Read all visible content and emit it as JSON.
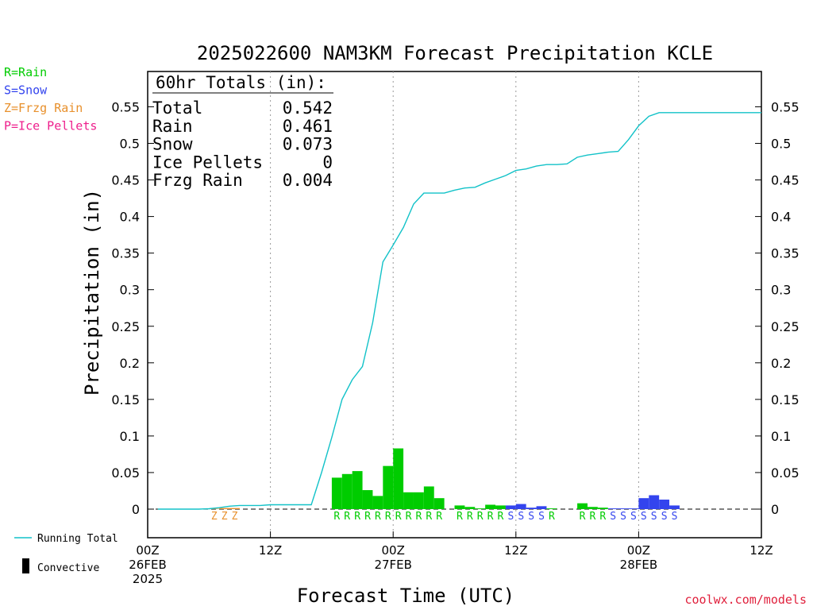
{
  "chart_data": {
    "type": "bar",
    "title": "2025022600 NAM3KM Forecast Precipitation KCLE",
    "xlabel": "Forecast Time (UTC)",
    "ylabel": "Precipitation (in)",
    "ylim": [
      -0.04,
      0.6
    ],
    "yticks": [
      0,
      0.05,
      0.1,
      0.15,
      0.2,
      0.25,
      0.3,
      0.35,
      0.4,
      0.45,
      0.5,
      0.55
    ],
    "ytick_labels": [
      "0",
      "0.05",
      "0.1",
      "0.15",
      "0.2",
      "0.25",
      "0.3",
      "0.35",
      "0.4",
      "0.45",
      "0.5",
      "0.55"
    ],
    "xlim_hours": [
      0,
      60
    ],
    "xticks": [
      {
        "hour": 0,
        "lines": [
          "00Z",
          "26FEB",
          "2025"
        ]
      },
      {
        "hour": 12,
        "lines": [
          "12Z"
        ]
      },
      {
        "hour": 24,
        "lines": [
          "00Z",
          "27FEB"
        ]
      },
      {
        "hour": 36,
        "lines": [
          "12Z"
        ]
      },
      {
        "hour": 48,
        "lines": [
          "00Z",
          "28FEB"
        ]
      },
      {
        "hour": 60,
        "lines": [
          "12Z"
        ]
      }
    ],
    "grid_hours": [
      12,
      24,
      36,
      48
    ],
    "legend_types": [
      {
        "code": "R",
        "label": "R=Rain",
        "color": "#00cc00"
      },
      {
        "code": "S",
        "label": "S=Snow",
        "color": "#3344ee"
      },
      {
        "code": "Z",
        "label": "Z=Frzg Rain",
        "color": "#e8902c"
      },
      {
        "code": "P",
        "label": "P=Ice Pellets",
        "color": "#ee1f8c"
      }
    ],
    "legend_lines": {
      "running_total": "Running Total",
      "convective": "Convective"
    },
    "totals": {
      "header": "60hr Totals (in):",
      "rows": [
        {
          "label": "Total",
          "value": "0.542"
        },
        {
          "label": "Rain",
          "value": "0.461"
        },
        {
          "label": "Snow",
          "value": "0.073"
        },
        {
          "label": "Ice Pellets",
          "value": "0"
        },
        {
          "label": "Frzg Rain",
          "value": "0.004"
        }
      ]
    },
    "running_total": {
      "hours": [
        1,
        4,
        5,
        6,
        7,
        8,
        9,
        10,
        11,
        12,
        13,
        14,
        15,
        16,
        17,
        18,
        19,
        20,
        21,
        22,
        23,
        24,
        25,
        26,
        27,
        28,
        29,
        30,
        31,
        32,
        33,
        34,
        35,
        36,
        37,
        38,
        39,
        40,
        41,
        42,
        43,
        44,
        45,
        46,
        47,
        48,
        49,
        50,
        51,
        52,
        53,
        60
      ],
      "values": [
        0.0,
        0.0,
        0.0,
        0.0005,
        0.002,
        0.004,
        0.005,
        0.005,
        0.005,
        0.006,
        0.006,
        0.006,
        0.006,
        0.006,
        0.05,
        0.098,
        0.15,
        0.177,
        0.195,
        0.255,
        0.338,
        0.361,
        0.385,
        0.417,
        0.432,
        0.432,
        0.432,
        0.436,
        0.439,
        0.44,
        0.446,
        0.451,
        0.456,
        0.463,
        0.465,
        0.469,
        0.471,
        0.471,
        0.472,
        0.481,
        0.484,
        0.486,
        0.488,
        0.489,
        0.505,
        0.524,
        0.537,
        0.542,
        0.542,
        0.542,
        0.542,
        0.542
      ]
    },
    "bars": [
      {
        "hour": 7,
        "value": 0.0005,
        "type": "Z"
      },
      {
        "hour": 8,
        "value": 0.0015,
        "type": "Z"
      },
      {
        "hour": 9,
        "value": 0.0015,
        "type": "Z"
      },
      {
        "hour": 19,
        "value": 0.043,
        "type": "R"
      },
      {
        "hour": 20,
        "value": 0.048,
        "type": "R"
      },
      {
        "hour": 21,
        "value": 0.052,
        "type": "R"
      },
      {
        "hour": 22,
        "value": 0.026,
        "type": "R"
      },
      {
        "hour": 23,
        "value": 0.018,
        "type": "R"
      },
      {
        "hour": 24,
        "value": 0.059,
        "type": "R"
      },
      {
        "hour": 25,
        "value": 0.083,
        "type": "R"
      },
      {
        "hour": 26,
        "value": 0.023,
        "type": "R"
      },
      {
        "hour": 27,
        "value": 0.023,
        "type": "R"
      },
      {
        "hour": 28,
        "value": 0.031,
        "type": "R"
      },
      {
        "hour": 29,
        "value": 0.015,
        "type": "R"
      },
      {
        "hour": 31,
        "value": 0.005,
        "type": "R"
      },
      {
        "hour": 32,
        "value": 0.003,
        "type": "R"
      },
      {
        "hour": 33,
        "value": 0.001,
        "type": "R"
      },
      {
        "hour": 34,
        "value": 0.006,
        "type": "R"
      },
      {
        "hour": 35,
        "value": 0.005,
        "type": "R"
      },
      {
        "hour": 36,
        "value": 0.005,
        "type": "S"
      },
      {
        "hour": 37,
        "value": 0.007,
        "type": "S"
      },
      {
        "hour": 38,
        "value": 0.002,
        "type": "S"
      },
      {
        "hour": 39,
        "value": 0.004,
        "type": "S"
      },
      {
        "hour": 40,
        "value": 0.001,
        "type": "R"
      },
      {
        "hour": 43,
        "value": 0.008,
        "type": "R"
      },
      {
        "hour": 44,
        "value": 0.003,
        "type": "R"
      },
      {
        "hour": 45,
        "value": 0.002,
        "type": "R"
      },
      {
        "hour": 46,
        "value": 0.001,
        "type": "S"
      },
      {
        "hour": 47,
        "value": 0.001,
        "type": "S"
      },
      {
        "hour": 48,
        "value": 0.001,
        "type": "S"
      },
      {
        "hour": 49,
        "value": 0.015,
        "type": "S"
      },
      {
        "hour": 50,
        "value": 0.019,
        "type": "S"
      },
      {
        "hour": 51,
        "value": 0.013,
        "type": "S"
      },
      {
        "hour": 52,
        "value": 0.005,
        "type": "S"
      }
    ],
    "type_marks": [
      {
        "hour": 7,
        "type": "Z"
      },
      {
        "hour": 8,
        "type": "Z"
      },
      {
        "hour": 9,
        "type": "Z"
      },
      {
        "hour": 19,
        "type": "R"
      },
      {
        "hour": 20,
        "type": "R"
      },
      {
        "hour": 21,
        "type": "R"
      },
      {
        "hour": 22,
        "type": "R"
      },
      {
        "hour": 23,
        "type": "R"
      },
      {
        "hour": 24,
        "type": "R"
      },
      {
        "hour": 25,
        "type": "R"
      },
      {
        "hour": 26,
        "type": "R"
      },
      {
        "hour": 27,
        "type": "R"
      },
      {
        "hour": 28,
        "type": "R"
      },
      {
        "hour": 29,
        "type": "R"
      },
      {
        "hour": 31,
        "type": "R"
      },
      {
        "hour": 32,
        "type": "R"
      },
      {
        "hour": 33,
        "type": "R"
      },
      {
        "hour": 34,
        "type": "R"
      },
      {
        "hour": 35,
        "type": "R"
      },
      {
        "hour": 36,
        "type": "S"
      },
      {
        "hour": 37,
        "type": "S"
      },
      {
        "hour": 38,
        "type": "S"
      },
      {
        "hour": 39,
        "type": "S"
      },
      {
        "hour": 40,
        "type": "R"
      },
      {
        "hour": 43,
        "type": "R"
      },
      {
        "hour": 44,
        "type": "R"
      },
      {
        "hour": 45,
        "type": "R"
      },
      {
        "hour": 46,
        "type": "S"
      },
      {
        "hour": 47,
        "type": "S"
      },
      {
        "hour": 48,
        "type": "S"
      },
      {
        "hour": 49,
        "type": "S"
      },
      {
        "hour": 50,
        "type": "S"
      },
      {
        "hour": 51,
        "type": "S"
      },
      {
        "hour": 52,
        "type": "S"
      }
    ],
    "colors": {
      "running_total": "#12c2c8",
      "convective": "#000000",
      "axis": "#000000",
      "grid": "#9a9a9a"
    }
  },
  "footer": {
    "credit": "coolwx.com/models",
    "credit_color": "#e0203c"
  }
}
